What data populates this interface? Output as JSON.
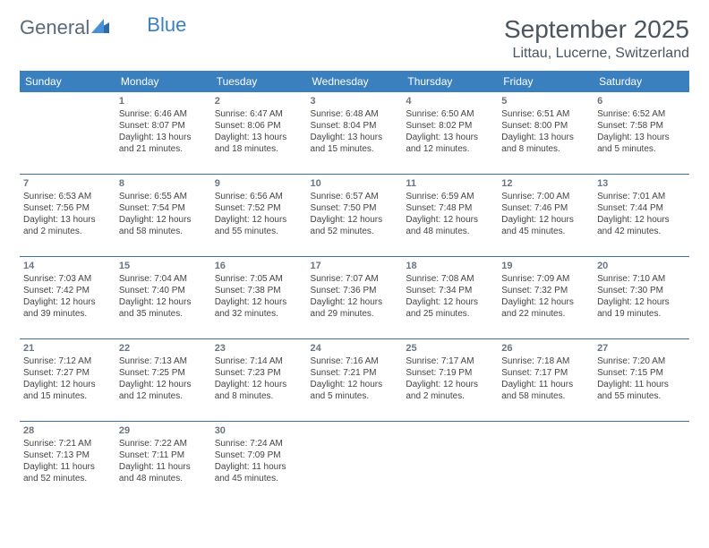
{
  "logo": {
    "part1": "General",
    "part2": "Blue"
  },
  "title": "September 2025",
  "subtitle": "Littau, Lucerne, Switzerland",
  "colors": {
    "header_bg": "#3a80bf",
    "header_fg": "#ffffff",
    "rule": "#3a6fa3",
    "title_color": "#4a5560",
    "text_color": "#444444",
    "logo_gray": "#5a6a78",
    "logo_blue": "#3a80bf",
    "background": "#ffffff"
  },
  "weekdays": [
    "Sunday",
    "Monday",
    "Tuesday",
    "Wednesday",
    "Thursday",
    "Friday",
    "Saturday"
  ],
  "grid": [
    [
      null,
      {
        "n": "1",
        "sr": "Sunrise: 6:46 AM",
        "ss": "Sunset: 8:07 PM",
        "d1": "Daylight: 13 hours",
        "d2": "and 21 minutes."
      },
      {
        "n": "2",
        "sr": "Sunrise: 6:47 AM",
        "ss": "Sunset: 8:06 PM",
        "d1": "Daylight: 13 hours",
        "d2": "and 18 minutes."
      },
      {
        "n": "3",
        "sr": "Sunrise: 6:48 AM",
        "ss": "Sunset: 8:04 PM",
        "d1": "Daylight: 13 hours",
        "d2": "and 15 minutes."
      },
      {
        "n": "4",
        "sr": "Sunrise: 6:50 AM",
        "ss": "Sunset: 8:02 PM",
        "d1": "Daylight: 13 hours",
        "d2": "and 12 minutes."
      },
      {
        "n": "5",
        "sr": "Sunrise: 6:51 AM",
        "ss": "Sunset: 8:00 PM",
        "d1": "Daylight: 13 hours",
        "d2": "and 8 minutes."
      },
      {
        "n": "6",
        "sr": "Sunrise: 6:52 AM",
        "ss": "Sunset: 7:58 PM",
        "d1": "Daylight: 13 hours",
        "d2": "and 5 minutes."
      }
    ],
    [
      {
        "n": "7",
        "sr": "Sunrise: 6:53 AM",
        "ss": "Sunset: 7:56 PM",
        "d1": "Daylight: 13 hours",
        "d2": "and 2 minutes."
      },
      {
        "n": "8",
        "sr": "Sunrise: 6:55 AM",
        "ss": "Sunset: 7:54 PM",
        "d1": "Daylight: 12 hours",
        "d2": "and 58 minutes."
      },
      {
        "n": "9",
        "sr": "Sunrise: 6:56 AM",
        "ss": "Sunset: 7:52 PM",
        "d1": "Daylight: 12 hours",
        "d2": "and 55 minutes."
      },
      {
        "n": "10",
        "sr": "Sunrise: 6:57 AM",
        "ss": "Sunset: 7:50 PM",
        "d1": "Daylight: 12 hours",
        "d2": "and 52 minutes."
      },
      {
        "n": "11",
        "sr": "Sunrise: 6:59 AM",
        "ss": "Sunset: 7:48 PM",
        "d1": "Daylight: 12 hours",
        "d2": "and 48 minutes."
      },
      {
        "n": "12",
        "sr": "Sunrise: 7:00 AM",
        "ss": "Sunset: 7:46 PM",
        "d1": "Daylight: 12 hours",
        "d2": "and 45 minutes."
      },
      {
        "n": "13",
        "sr": "Sunrise: 7:01 AM",
        "ss": "Sunset: 7:44 PM",
        "d1": "Daylight: 12 hours",
        "d2": "and 42 minutes."
      }
    ],
    [
      {
        "n": "14",
        "sr": "Sunrise: 7:03 AM",
        "ss": "Sunset: 7:42 PM",
        "d1": "Daylight: 12 hours",
        "d2": "and 39 minutes."
      },
      {
        "n": "15",
        "sr": "Sunrise: 7:04 AM",
        "ss": "Sunset: 7:40 PM",
        "d1": "Daylight: 12 hours",
        "d2": "and 35 minutes."
      },
      {
        "n": "16",
        "sr": "Sunrise: 7:05 AM",
        "ss": "Sunset: 7:38 PM",
        "d1": "Daylight: 12 hours",
        "d2": "and 32 minutes."
      },
      {
        "n": "17",
        "sr": "Sunrise: 7:07 AM",
        "ss": "Sunset: 7:36 PM",
        "d1": "Daylight: 12 hours",
        "d2": "and 29 minutes."
      },
      {
        "n": "18",
        "sr": "Sunrise: 7:08 AM",
        "ss": "Sunset: 7:34 PM",
        "d1": "Daylight: 12 hours",
        "d2": "and 25 minutes."
      },
      {
        "n": "19",
        "sr": "Sunrise: 7:09 AM",
        "ss": "Sunset: 7:32 PM",
        "d1": "Daylight: 12 hours",
        "d2": "and 22 minutes."
      },
      {
        "n": "20",
        "sr": "Sunrise: 7:10 AM",
        "ss": "Sunset: 7:30 PM",
        "d1": "Daylight: 12 hours",
        "d2": "and 19 minutes."
      }
    ],
    [
      {
        "n": "21",
        "sr": "Sunrise: 7:12 AM",
        "ss": "Sunset: 7:27 PM",
        "d1": "Daylight: 12 hours",
        "d2": "and 15 minutes."
      },
      {
        "n": "22",
        "sr": "Sunrise: 7:13 AM",
        "ss": "Sunset: 7:25 PM",
        "d1": "Daylight: 12 hours",
        "d2": "and 12 minutes."
      },
      {
        "n": "23",
        "sr": "Sunrise: 7:14 AM",
        "ss": "Sunset: 7:23 PM",
        "d1": "Daylight: 12 hours",
        "d2": "and 8 minutes."
      },
      {
        "n": "24",
        "sr": "Sunrise: 7:16 AM",
        "ss": "Sunset: 7:21 PM",
        "d1": "Daylight: 12 hours",
        "d2": "and 5 minutes."
      },
      {
        "n": "25",
        "sr": "Sunrise: 7:17 AM",
        "ss": "Sunset: 7:19 PM",
        "d1": "Daylight: 12 hours",
        "d2": "and 2 minutes."
      },
      {
        "n": "26",
        "sr": "Sunrise: 7:18 AM",
        "ss": "Sunset: 7:17 PM",
        "d1": "Daylight: 11 hours",
        "d2": "and 58 minutes."
      },
      {
        "n": "27",
        "sr": "Sunrise: 7:20 AM",
        "ss": "Sunset: 7:15 PM",
        "d1": "Daylight: 11 hours",
        "d2": "and 55 minutes."
      }
    ],
    [
      {
        "n": "28",
        "sr": "Sunrise: 7:21 AM",
        "ss": "Sunset: 7:13 PM",
        "d1": "Daylight: 11 hours",
        "d2": "and 52 minutes."
      },
      {
        "n": "29",
        "sr": "Sunrise: 7:22 AM",
        "ss": "Sunset: 7:11 PM",
        "d1": "Daylight: 11 hours",
        "d2": "and 48 minutes."
      },
      {
        "n": "30",
        "sr": "Sunrise: 7:24 AM",
        "ss": "Sunset: 7:09 PM",
        "d1": "Daylight: 11 hours",
        "d2": "and 45 minutes."
      },
      null,
      null,
      null,
      null
    ]
  ]
}
